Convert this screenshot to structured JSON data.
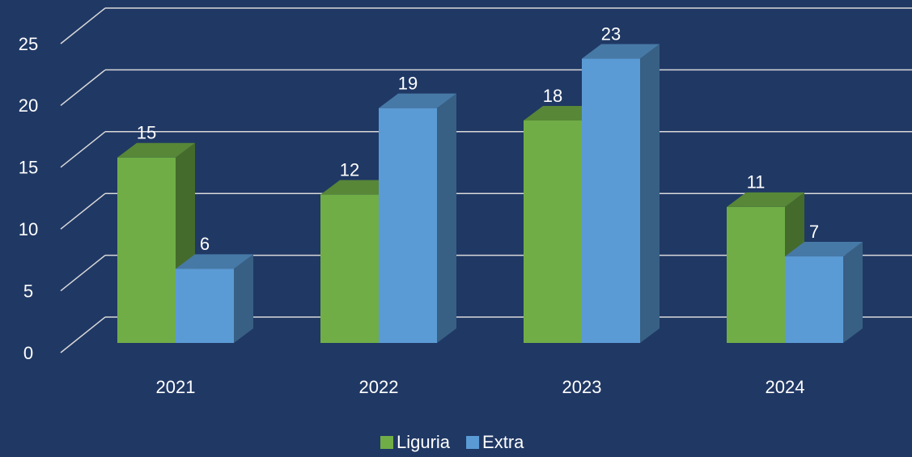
{
  "chart_data": {
    "type": "bar3d",
    "categories": [
      "2021",
      "2022",
      "2023",
      "2024"
    ],
    "series": [
      {
        "name": "Liguria",
        "color": "#70ad47",
        "values": [
          15,
          12,
          18,
          11
        ]
      },
      {
        "name": "Extra",
        "color": "#5b9bd5",
        "values": [
          6,
          19,
          23,
          7
        ]
      }
    ],
    "ylim": [
      0,
      25
    ],
    "yticks": [
      0,
      5,
      10,
      15,
      20,
      25
    ],
    "grid": true,
    "legend": "bottom"
  }
}
